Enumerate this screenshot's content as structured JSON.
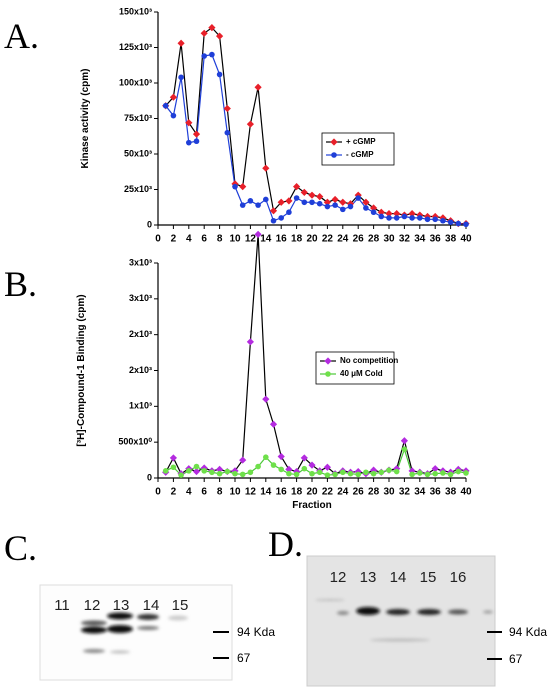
{
  "chart_data": [
    {
      "type": "line",
      "panel_label": "A.",
      "ylabel": "Kinase activity (cpm)",
      "x": [
        1,
        2,
        3,
        4,
        5,
        6,
        7,
        8,
        9,
        10,
        11,
        12,
        13,
        14,
        15,
        16,
        17,
        18,
        19,
        20,
        21,
        22,
        23,
        24,
        25,
        26,
        27,
        28,
        29,
        30,
        31,
        32,
        33,
        34,
        35,
        36,
        37,
        38,
        39,
        40
      ],
      "series": [
        {
          "name": "+ cGMP",
          "color": "#e8202a",
          "line_color": "#000000",
          "marker": "diamond",
          "values": [
            84000,
            90000,
            128000,
            72000,
            64000,
            135000,
            139000,
            133000,
            82000,
            29000,
            27000,
            71000,
            97000,
            40000,
            10000,
            16000,
            17000,
            27000,
            23000,
            21000,
            20000,
            16000,
            18000,
            16000,
            15000,
            21000,
            16000,
            12000,
            9000,
            8000,
            8000,
            7000,
            8000,
            7000,
            6000,
            6000,
            5000,
            3000,
            1000,
            1000
          ]
        },
        {
          "name": "- cGMP",
          "color": "#1f3fd8",
          "line_color": "#1f3fd8",
          "marker": "circle",
          "values": [
            84000,
            77000,
            104000,
            58000,
            59000,
            119000,
            120000,
            106000,
            65000,
            27000,
            14000,
            17000,
            14000,
            18000,
            3000,
            5000,
            9000,
            19000,
            16000,
            16000,
            15000,
            13000,
            14000,
            11000,
            13000,
            19000,
            12000,
            9000,
            6000,
            5000,
            5000,
            6000,
            5000,
            5000,
            4000,
            4000,
            3000,
            2000,
            1000,
            500
          ]
        }
      ],
      "xlim": [
        0,
        40
      ],
      "xticks": [
        0,
        2,
        4,
        6,
        8,
        10,
        12,
        14,
        16,
        18,
        20,
        22,
        24,
        26,
        28,
        30,
        32,
        34,
        36,
        38,
        40
      ],
      "ylim": [
        0,
        150000
      ],
      "yticks": [
        0,
        {
          "value": 25000,
          "label": "25x10³"
        },
        {
          "value": 50000,
          "label": "50x10³"
        },
        {
          "value": 75000,
          "label": "75x10³"
        },
        {
          "value": 100000,
          "label": "100x10³"
        },
        {
          "value": 125000,
          "label": "125x10³"
        },
        {
          "value": 150000,
          "label": "150x10³"
        }
      ]
    },
    {
      "type": "line",
      "panel_label": "B.",
      "ylabel": "[³H]-Compound-1 Binding (cpm)",
      "xlabel": "Fraction",
      "x": [
        1,
        2,
        3,
        4,
        5,
        6,
        7,
        8,
        9,
        10,
        11,
        12,
        13,
        14,
        15,
        16,
        17,
        18,
        19,
        20,
        21,
        22,
        23,
        24,
        25,
        26,
        27,
        28,
        29,
        30,
        31,
        32,
        33,
        34,
        35,
        36,
        37,
        38,
        39,
        40
      ],
      "series": [
        {
          "name": "No competition",
          "color": "#b42be0",
          "line_color": "#000000",
          "marker": "diamond",
          "values": [
            80,
            280,
            60,
            130,
            90,
            140,
            100,
            120,
            90,
            100,
            250,
            1900,
            3400,
            1100,
            750,
            300,
            120,
            90,
            280,
            180,
            100,
            150,
            60,
            100,
            80,
            90,
            60,
            110,
            80,
            110,
            130,
            520,
            100,
            80,
            60,
            130,
            100,
            80,
            120,
            100
          ]
        },
        {
          "name": "40 μM Cold",
          "color": "#6fe04a",
          "line_color": "#4cc83a",
          "marker": "circle",
          "values": [
            100,
            150,
            40,
            100,
            160,
            100,
            80,
            60,
            90,
            60,
            50,
            80,
            160,
            290,
            180,
            120,
            60,
            50,
            130,
            60,
            80,
            40,
            50,
            80,
            60,
            50,
            80,
            60,
            80,
            110,
            90,
            400,
            50,
            70,
            50,
            60,
            70,
            50,
            90,
            70
          ]
        }
      ],
      "xlim": [
        0,
        40
      ],
      "xticks": [
        0,
        2,
        4,
        6,
        8,
        10,
        12,
        14,
        16,
        18,
        20,
        22,
        24,
        26,
        28,
        30,
        32,
        34,
        36,
        38,
        40
      ],
      "ylim": [
        0,
        3000
      ],
      "yticks": [
        0,
        {
          "value": 500,
          "label": "500x10⁰"
        },
        {
          "value": 1000,
          "label": "1x10³"
        },
        {
          "value": 1500,
          "label": "2x10³"
        },
        {
          "value": 2000,
          "label": "2x10³"
        },
        {
          "value": 2500,
          "label": "3x10³"
        },
        {
          "value": 3000,
          "label": "3x10³"
        }
      ]
    }
  ],
  "gels": [
    {
      "panel_label": "C.",
      "lanes": [
        "11",
        "12",
        "13",
        "14",
        "15"
      ],
      "markers": [
        "94 Kda",
        "67"
      ]
    },
    {
      "panel_label": "D.",
      "lanes": [
        "12",
        "13",
        "14",
        "15",
        "16"
      ],
      "markers": [
        "94 Kda",
        "67"
      ]
    }
  ]
}
